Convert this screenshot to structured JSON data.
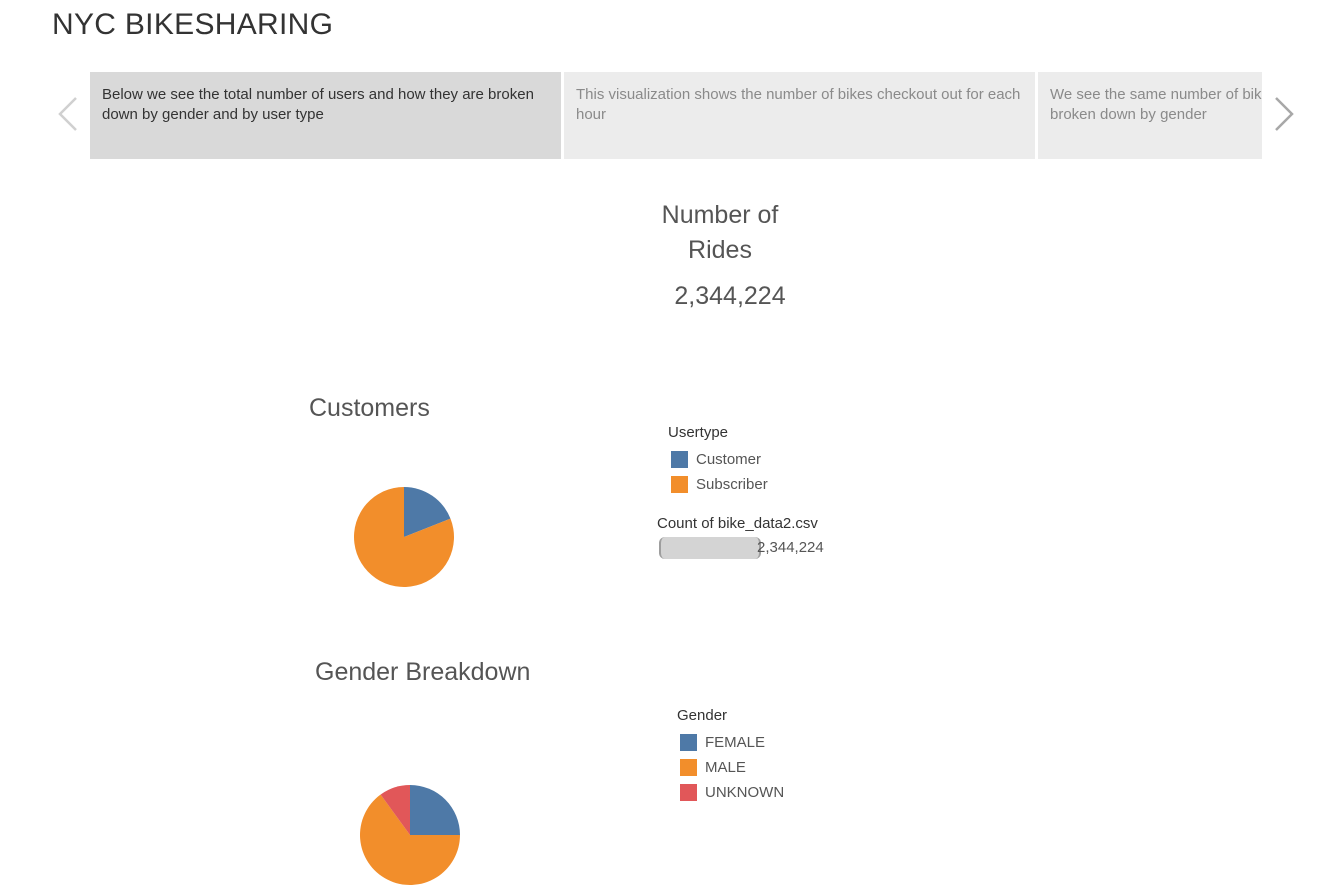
{
  "title": "NYC BIKESHARING",
  "story_points": [
    {
      "text": "Below we see the total number of users and how they are broken down by gender and by user type",
      "active": true
    },
    {
      "text": "This visualization shows the number of bikes checkout out for each hour",
      "active": false
    },
    {
      "text": "We see the same number of bikes checked out for each hour broken down by gender",
      "active": false
    }
  ],
  "icons": {
    "prev": "chevron-left-icon",
    "next": "chevron-right-icon"
  },
  "kpi": {
    "title": "Number of Rides",
    "value": "2,344,224"
  },
  "usertype": {
    "section_title": "Customers",
    "legend_title": "Usertype",
    "items": [
      {
        "label": "Customer",
        "color": "#4e79a7"
      },
      {
        "label": "Subscriber",
        "color": "#f28e2b"
      }
    ]
  },
  "count": {
    "label": "Count of bike_data2.csv",
    "value": "2,344,224"
  },
  "gender": {
    "section_title": "Gender Breakdown",
    "legend_title": "Gender",
    "items": [
      {
        "label": "FEMALE",
        "color": "#4e79a7"
      },
      {
        "label": "MALE",
        "color": "#f28e2b"
      },
      {
        "label": "UNKNOWN",
        "color": "#e15759"
      }
    ]
  },
  "chart_data": [
    {
      "type": "pie",
      "title": "Customers",
      "categories": [
        "Customer",
        "Subscriber"
      ],
      "values": [
        19,
        81
      ],
      "colors": [
        "#4e79a7",
        "#f28e2b"
      ]
    },
    {
      "type": "pie",
      "title": "Gender Breakdown",
      "categories": [
        "FEMALE",
        "MALE",
        "UNKNOWN"
      ],
      "values": [
        25,
        65,
        10
      ],
      "colors": [
        "#4e79a7",
        "#f28e2b",
        "#e15759"
      ]
    }
  ]
}
